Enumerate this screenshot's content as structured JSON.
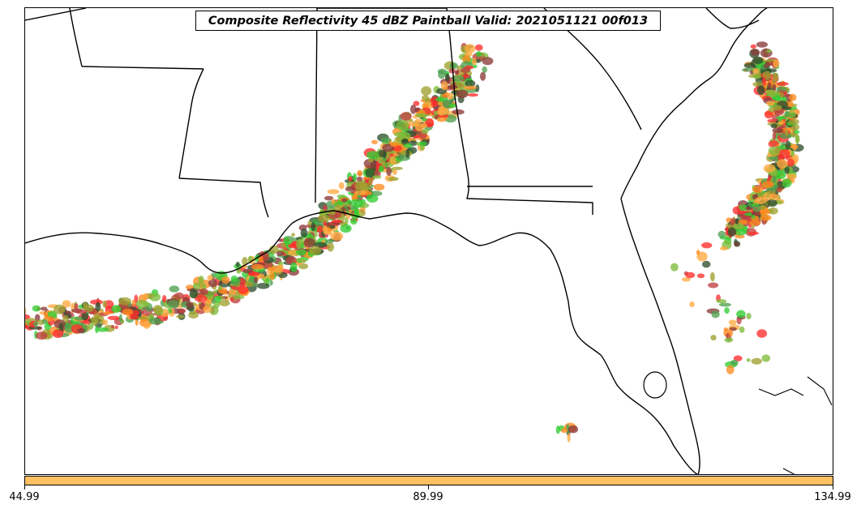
{
  "title": "Composite Reflectivity 45 dBZ Paintball Valid: 2021051121 00f013",
  "colorbar": {
    "color": "#ffc062",
    "ticks": [
      "44.99",
      "89.99",
      "134.99"
    ]
  },
  "palette": [
    "#ff2d2d",
    "#ff8a1f",
    "#ffa940",
    "#32cd32",
    "#4fa04f",
    "#8b3a3a",
    "#a0a030",
    "#2f4f2f",
    "#c04040",
    "#7dbb3b"
  ]
}
